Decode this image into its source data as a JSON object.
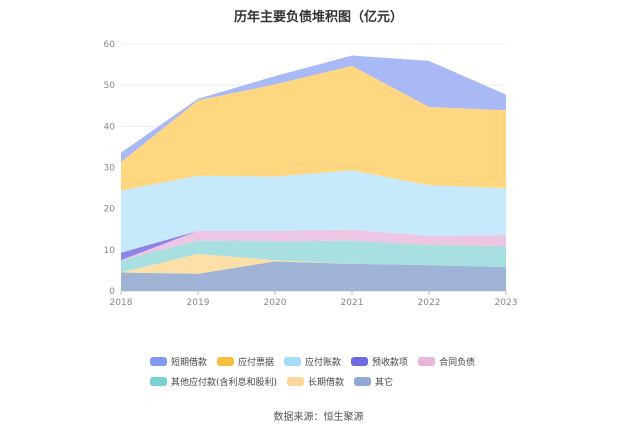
{
  "chart_data": {
    "type": "area",
    "stacked": true,
    "title": "历年主要负债堆积图（亿元）",
    "categories": [
      "2018",
      "2019",
      "2020",
      "2021",
      "2022",
      "2023"
    ],
    "ylim": [
      0,
      60
    ],
    "yticks": [
      0,
      10,
      20,
      30,
      40,
      50,
      60
    ],
    "grid": true,
    "legend_position": "bottom",
    "series": [
      {
        "name": "其它",
        "color": "#9fb3d6",
        "values": [
          4.5,
          4.2,
          7.2,
          6.6,
          6.3,
          5.8
        ]
      },
      {
        "name": "长期借款",
        "color": "#fde0a8",
        "values": [
          0.0,
          4.8,
          0.3,
          0.0,
          0.0,
          0.0
        ]
      },
      {
        "name": "其他应付款(含利息和股利)",
        "color": "#a8dfe0",
        "values": [
          3.0,
          3.2,
          4.6,
          5.6,
          4.9,
          5.1
        ]
      },
      {
        "name": "合同负债",
        "color": "#ecc6e2",
        "values": [
          0.0,
          2.4,
          2.5,
          2.7,
          2.2,
          2.7
        ]
      },
      {
        "name": "预收款项",
        "color": "#8e83e8",
        "values": [
          1.8,
          0.0,
          0.0,
          0.0,
          0.0,
          0.0
        ]
      },
      {
        "name": "应付账款",
        "color": "#c6e9fb",
        "values": [
          15.1,
          13.4,
          13.2,
          14.4,
          12.3,
          11.4
        ]
      },
      {
        "name": "应付票据",
        "color": "#ffd780",
        "values": [
          6.9,
          18.3,
          22.4,
          25.4,
          19.0,
          18.9
        ]
      },
      {
        "name": "短期借款",
        "color": "#a9b9f6",
        "values": [
          2.3,
          0.4,
          2.0,
          2.5,
          11.2,
          3.8
        ]
      }
    ],
    "legend_rows": [
      [
        "短期借款",
        "应付票据",
        "应付账款",
        "预收款项",
        "合同负债"
      ],
      [
        "其他应付款(含利息和股利)",
        "长期借款",
        "其它"
      ]
    ],
    "legend_colors": {
      "短期借款": "#7f9bf0",
      "应付票据": "#f6c03f",
      "应付账款": "#a6dcf8",
      "预收款项": "#6f69e0",
      "合同负债": "#e6b7da",
      "其他应付款(含利息和股利)": "#78d0d2",
      "长期借款": "#fcd69a",
      "其它": "#8fa8d4"
    }
  },
  "source_text": "数据来源：恒生聚源"
}
